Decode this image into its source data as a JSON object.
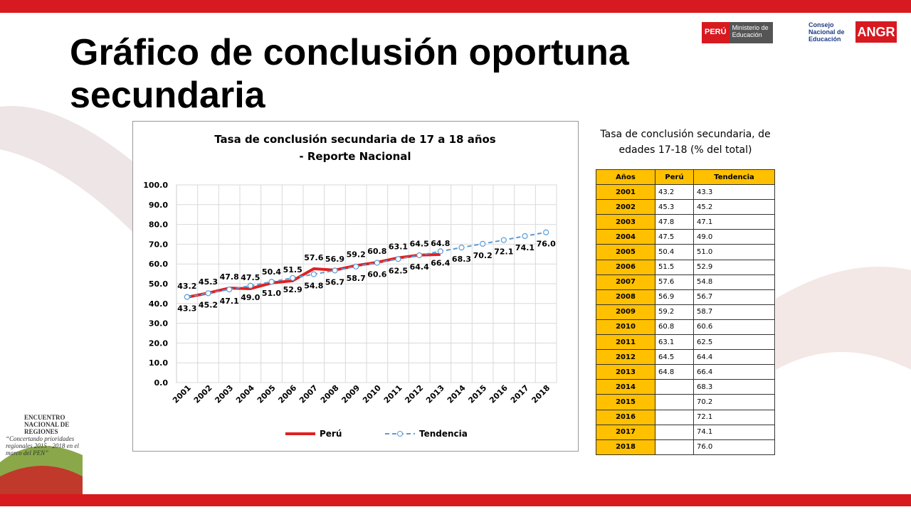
{
  "slide": {
    "title": "Gráfico de conclusión oportuna secundaria",
    "logos": [
      "PERÚ",
      "Ministerio de Educación",
      "Consejo Nacional de Educación",
      "ANGR"
    ],
    "event": [
      "ENCUENTRO NACIONAL DE REGIONES",
      "“Concertando prioridades regionales 2015 - 2018 en el marco del PEN”"
    ]
  },
  "chart_data": {
    "type": "line",
    "title": "Tasa de conclusión secundaria de 17 a 18 años",
    "subtitle": "- Reporte Nacional",
    "categories": [
      "2001",
      "2002",
      "2003",
      "2004",
      "2005",
      "2006",
      "2007",
      "2008",
      "2009",
      "2010",
      "2011",
      "2012",
      "2013",
      "2014",
      "2015",
      "2016",
      "2017",
      "2018"
    ],
    "series": [
      {
        "name": "Perú",
        "color": "#e02020",
        "dashed": false,
        "markers": false,
        "label_side": "above",
        "values": [
          43.2,
          45.3,
          47.8,
          47.5,
          50.4,
          51.5,
          57.6,
          56.9,
          59.2,
          60.8,
          63.1,
          64.5,
          64.8,
          null,
          null,
          null,
          null,
          null
        ],
        "value_labels": [
          "43.2",
          "45.3",
          "47.8",
          "47.5",
          "50.4",
          "51.5",
          "57.6",
          "56.9",
          "59.2",
          "60.8",
          "63.1",
          "64.5",
          "64.8",
          null,
          null,
          null,
          null,
          null
        ]
      },
      {
        "name": "Tendencia",
        "color": "#5b9bd5",
        "dashed": true,
        "markers": true,
        "label_side": "below",
        "values": [
          43.3,
          45.2,
          47.1,
          49.0,
          51.0,
          52.9,
          54.8,
          56.7,
          58.7,
          60.6,
          62.5,
          64.4,
          66.4,
          68.3,
          70.2,
          72.1,
          74.1,
          76.0
        ],
        "value_labels": [
          "43.3",
          "45.2",
          "47.1",
          "49.0",
          "51.0",
          "52.9",
          "54.8",
          "56.7",
          "58.7",
          "60.6",
          "62.5",
          "64.4",
          "66.4",
          "68.3",
          "70.2",
          "72.1",
          "74.1",
          "76.0"
        ]
      }
    ],
    "ylim": [
      0,
      100
    ],
    "yticks": [
      {
        "value": 0,
        "label": "0.0"
      },
      {
        "value": 10,
        "label": "10.0"
      },
      {
        "value": 20,
        "label": "20.0"
      },
      {
        "value": 30,
        "label": "30.0"
      },
      {
        "value": 40,
        "label": "40.0"
      },
      {
        "value": 50,
        "label": "50.0"
      },
      {
        "value": 60,
        "label": "60.0"
      },
      {
        "value": 70,
        "label": "70.0"
      },
      {
        "value": 80,
        "label": "80.0"
      },
      {
        "value": 90,
        "label": "90.0"
      },
      {
        "value": 100,
        "label": "100.0"
      }
    ],
    "grid": true,
    "legend": "bottom"
  },
  "table": {
    "title": "Tasa de conclusión secundaria, de edades 17-18 (% del total)",
    "header": [
      "Años",
      "Perú",
      "Tendencia"
    ],
    "rows": [
      [
        "2001",
        "43.2",
        "43.3"
      ],
      [
        "2002",
        "45.3",
        "45.2"
      ],
      [
        "2003",
        "47.8",
        "47.1"
      ],
      [
        "2004",
        "47.5",
        "49.0"
      ],
      [
        "2005",
        "50.4",
        "51.0"
      ],
      [
        "2006",
        "51.5",
        "52.9"
      ],
      [
        "2007",
        "57.6",
        "54.8"
      ],
      [
        "2008",
        "56.9",
        "56.7"
      ],
      [
        "2009",
        "59.2",
        "58.7"
      ],
      [
        "2010",
        "60.8",
        "60.6"
      ],
      [
        "2011",
        "63.1",
        "62.5"
      ],
      [
        "2012",
        "64.5",
        "64.4"
      ],
      [
        "2013",
        "64.8",
        "66.4"
      ],
      [
        "2014",
        null,
        "68.3"
      ],
      [
        "2015",
        null,
        "70.2"
      ],
      [
        "2016",
        null,
        "72.1"
      ],
      [
        "2017",
        null,
        "74.1"
      ],
      [
        "2018",
        null,
        "76.0"
      ]
    ]
  }
}
